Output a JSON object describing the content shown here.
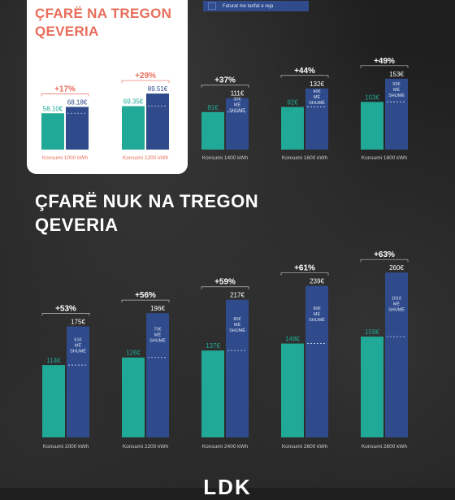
{
  "legend": {
    "label": "Faturat me tarifat e reja"
  },
  "card_title": "ÇFARË NA TREGON QEVERIA",
  "big_title": "ÇFARË NUK NA TREGON QEVERIA",
  "logo": "LDK",
  "colors": {
    "old": "#20a996",
    "new": "#2f4b8c",
    "accent": "#e86d5a",
    "card": "#ffffff"
  },
  "chart_data": [
    {
      "type": "bar",
      "title": "ÇFARË NA TREGON QEVERIA",
      "categories": [
        "Konsumi 1000 kWh",
        "Konsumi 1200 kWh"
      ],
      "series": [
        {
          "values": [
            58.1,
            69.35
          ],
          "labels": [
            "58.10€",
            "69.35€"
          ]
        },
        {
          "name": "Faturat me tarifat e reja",
          "values": [
            68.18,
            89.51
          ],
          "labels": [
            "68.18€",
            "89.51€"
          ]
        }
      ],
      "increase_labels": [
        "+17%",
        "+29%"
      ],
      "difference_labels": []
    },
    {
      "type": "bar",
      "categories": [
        "Konsumi 1400 kWh",
        "Konsumi 1600 kWh",
        "Konsumi 1800 kWh"
      ],
      "series": [
        {
          "values": [
            81,
            92,
            103
          ],
          "labels": [
            "81€",
            "92€",
            "103€"
          ]
        },
        {
          "name": "Faturat me tarifat e reja",
          "values": [
            111,
            132,
            153
          ],
          "labels": [
            "111€",
            "132€",
            "153€"
          ]
        }
      ],
      "increase_labels": [
        "+37%",
        "+44%",
        "+49%"
      ],
      "difference_labels": [
        "30€ MË SHUMË",
        "40€ MË SHUMË",
        "50€ MË SHUMË"
      ]
    },
    {
      "type": "bar",
      "title": "ÇFARË NUK NA TREGON QEVERIA",
      "categories": [
        "Konsumi 2000 kWh",
        "Konsumi 2200 kWh",
        "Konsumi 2400 kWh",
        "Konsumi 2600 kWh",
        "Konsumi 2800 kWh"
      ],
      "series": [
        {
          "values": [
            114,
            126,
            137,
            148,
            159
          ],
          "labels": [
            "114€",
            "126€",
            "137€",
            "148€",
            "159€"
          ]
        },
        {
          "name": "Faturat me tarifat e reja",
          "values": [
            175,
            196,
            217,
            239,
            260
          ],
          "labels": [
            "175€",
            "196€",
            "217€",
            "239€",
            "260€"
          ]
        }
      ],
      "increase_labels": [
        "+53%",
        "+56%",
        "+59%",
        "+61%",
        "+63%"
      ],
      "difference_labels": [
        "61€ MË SHUMË",
        "70€ MË SHUMË",
        "80€ MË SHUMË",
        "90€ MË SHUMË",
        "101€ MË SHUMË"
      ]
    }
  ]
}
